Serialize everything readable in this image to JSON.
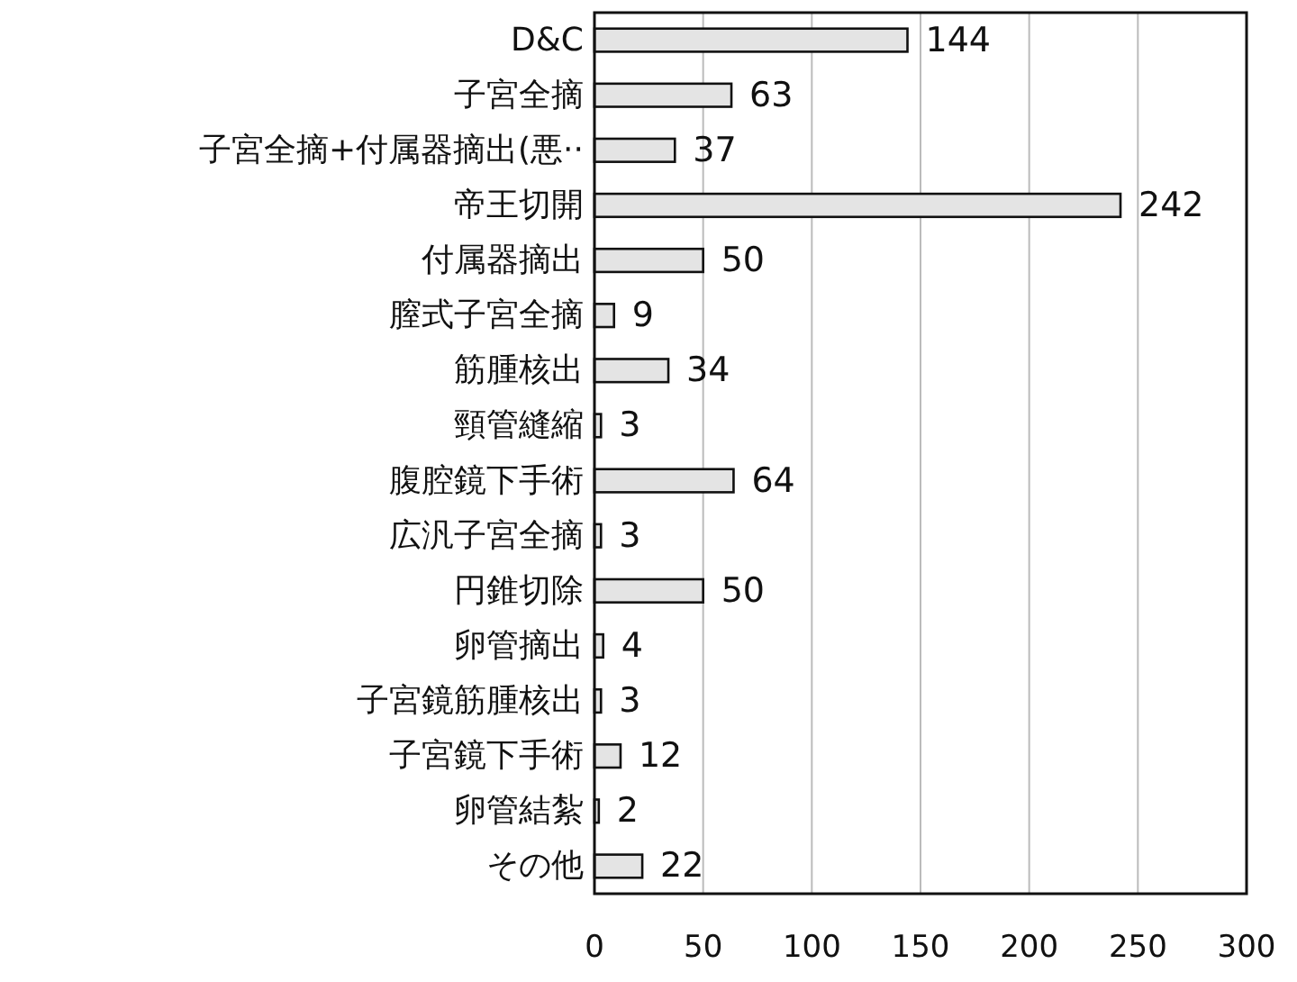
{
  "chart_data": {
    "type": "bar",
    "orientation": "horizontal",
    "categories": [
      "D&C",
      "子宮全摘",
      "子宮全摘+付属器摘出(悪··",
      "帝王切開",
      "付属器摘出",
      "膣式子宮全摘",
      "筋腫核出",
      "頸管縫縮",
      "腹腔鏡下手術",
      "広汎子宮全摘",
      "円錐切除",
      "卵管摘出",
      "子宮鏡筋腫核出",
      "子宮鏡下手術",
      "卵管結紮",
      "その他"
    ],
    "values": [
      144,
      63,
      37,
      242,
      50,
      9,
      34,
      3,
      64,
      3,
      50,
      4,
      3,
      12,
      2,
      22
    ],
    "color": "#e4e4e4",
    "xlim": [
      0,
      300
    ],
    "xticks": [
      0,
      50,
      100,
      150,
      200,
      250,
      300
    ],
    "grid": "x",
    "data_labels": true
  }
}
